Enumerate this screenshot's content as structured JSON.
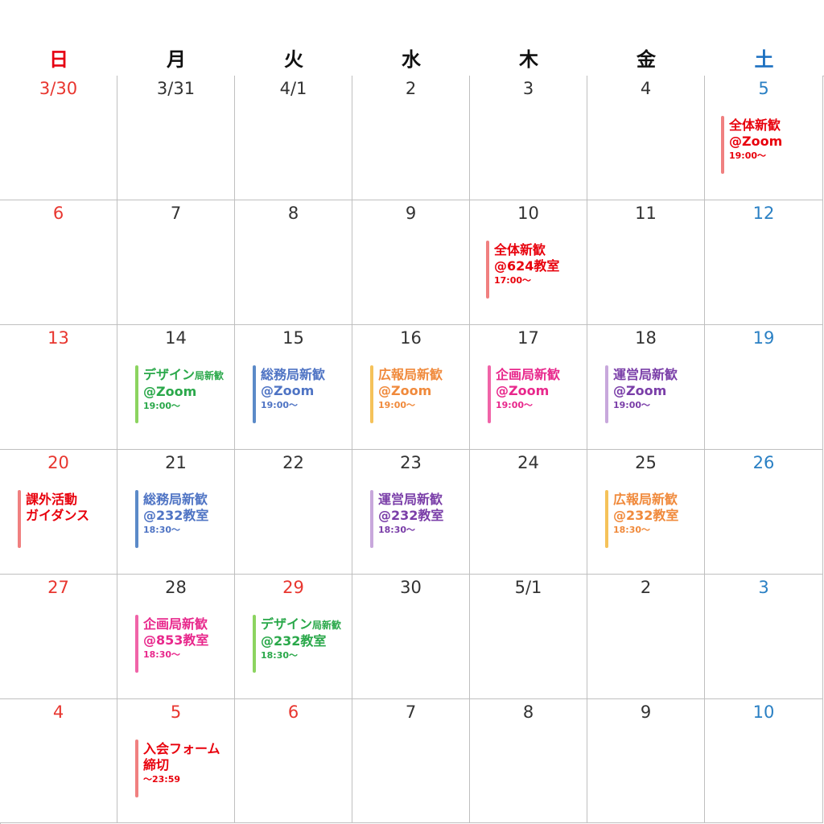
{
  "weekdays": [
    "日",
    "月",
    "火",
    "水",
    "木",
    "金",
    "土"
  ],
  "colors": {
    "sunday": "#e8362f",
    "saturday": "#2a80c4",
    "weekday": "#333333",
    "grid": "#bfbfbf"
  },
  "weeks": [
    [
      "3/30",
      "3/31",
      "4/1",
      "2",
      "3",
      "4",
      "5"
    ],
    [
      "6",
      "7",
      "8",
      "9",
      "10",
      "11",
      "12"
    ],
    [
      "13",
      "14",
      "15",
      "16",
      "17",
      "18",
      "19"
    ],
    [
      "20",
      "21",
      "22",
      "23",
      "24",
      "25",
      "26"
    ],
    [
      "27",
      "28",
      "29",
      "30",
      "5/1",
      "2",
      "3"
    ],
    [
      "4",
      "5",
      "6",
      "7",
      "8",
      "9",
      "10"
    ]
  ],
  "holidays": [
    [
      4,
      2
    ],
    [
      5,
      1
    ],
    [
      5,
      2
    ]
  ],
  "events": [
    {
      "week": 0,
      "day": 6,
      "line1": "全体新歓",
      "line1_small": "",
      "line2": "@Zoom",
      "line3": "19:00〜",
      "color": "#e8000c",
      "bar": "#f08080",
      "barh": 72
    },
    {
      "week": 1,
      "day": 4,
      "line1": "全体新歓",
      "line1_small": "",
      "line2": "@624教室",
      "line3": "17:00〜",
      "color": "#e8000c",
      "bar": "#f08080",
      "barh": 72
    },
    {
      "week": 2,
      "day": 1,
      "line1": "デザイン",
      "line1_small": "局新歓",
      "line2": "@Zoom",
      "line3": "19:00〜",
      "color": "#2aa84a",
      "bar": "#8cd460",
      "barh": 72
    },
    {
      "week": 2,
      "day": 2,
      "line1": "総務局新歓",
      "line1_small": "",
      "line2": "@Zoom",
      "line3": "19:00〜",
      "color": "#4f74c4",
      "bar": "#5b8ac8",
      "barh": 72
    },
    {
      "week": 2,
      "day": 3,
      "line1": "広報局新歓",
      "line1_small": "",
      "line2": "@Zoom",
      "line3": "19:00〜",
      "color": "#f08a3c",
      "bar": "#f5c25a",
      "barh": 72
    },
    {
      "week": 2,
      "day": 4,
      "line1": "企画局新歓",
      "line1_small": "",
      "line2": "@Zoom",
      "line3": "19:00〜",
      "color": "#e8288c",
      "bar": "#f064a8",
      "barh": 72
    },
    {
      "week": 2,
      "day": 5,
      "line1": "運営局新歓",
      "line1_small": "",
      "line2": "@Zoom",
      "line3": "19:00〜",
      "color": "#7a3ea8",
      "bar": "#c8a8dc",
      "barh": 72
    },
    {
      "week": 3,
      "day": 0,
      "line1": "課外活動",
      "line1_small": "",
      "line2": "ガイダンス",
      "line3": "",
      "color": "#e8000c",
      "bar": "#f08080",
      "barh": 72
    },
    {
      "week": 3,
      "day": 1,
      "line1": "総務局新歓",
      "line1_small": "",
      "line2": "@232教室",
      "line3": "18:30〜",
      "color": "#4f74c4",
      "bar": "#5b8ac8",
      "barh": 72
    },
    {
      "week": 3,
      "day": 3,
      "line1": "運営局新歓",
      "line1_small": "",
      "line2": "@232教室",
      "line3": "18:30〜",
      "color": "#7a3ea8",
      "bar": "#c8a8dc",
      "barh": 72
    },
    {
      "week": 3,
      "day": 5,
      "line1": "広報局新歓",
      "line1_small": "",
      "line2": "@232教室",
      "line3": "18:30〜",
      "color": "#f08a3c",
      "bar": "#f5c25a",
      "barh": 72
    },
    {
      "week": 4,
      "day": 1,
      "line1": "企画局新歓",
      "line1_small": "",
      "line2": "@853教室",
      "line3": "18:30〜",
      "color": "#e8288c",
      "bar": "#f064a8",
      "barh": 72
    },
    {
      "week": 4,
      "day": 2,
      "line1": "デザイン",
      "line1_small": "局新歓",
      "line2": "@232教室",
      "line3": "18:30〜",
      "color": "#2aa84a",
      "bar": "#8cd460",
      "barh": 72
    },
    {
      "week": 5,
      "day": 1,
      "line1": "入会フォーム",
      "line1_small": "",
      "line2": "締切",
      "line3": "〜23:59",
      "color": "#e8000c",
      "bar": "#f08080",
      "barh": 72
    }
  ]
}
